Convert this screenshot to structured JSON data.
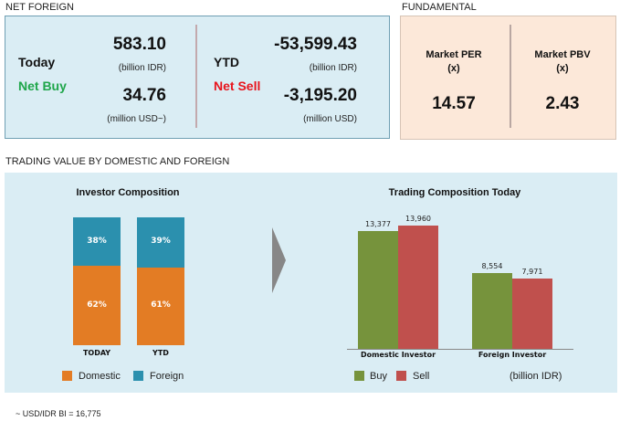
{
  "net_foreign": {
    "section_title": "NET FOREIGN",
    "today": {
      "label": "Today",
      "status": "Net Buy",
      "idr_value": "583.10",
      "idr_unit": "(billion IDR)",
      "usd_value": "34.76",
      "usd_unit": "(million USD~)"
    },
    "ytd": {
      "label": "YTD",
      "status": "Net Sell",
      "idr_value": "-53,599.43",
      "idr_unit": "(billion IDR)",
      "usd_value": "-3,195.20",
      "usd_unit": "(million USD)"
    }
  },
  "fundamental": {
    "section_title": "FUNDAMENTAL",
    "per": {
      "label": "Market PER",
      "unit": "(x)",
      "value": "14.57"
    },
    "pbv": {
      "label": "Market PBV",
      "unit": "(x)",
      "value": "2.43"
    }
  },
  "trading_value": {
    "section_title": "TRADING VALUE BY DOMESTIC AND FOREIGN",
    "footnote": "~ USD/IDR BI = 16,775"
  },
  "colors": {
    "domestic": "#e37c24",
    "foreign": "#2b90ae",
    "buy": "#76933c",
    "sell": "#c0504d"
  },
  "chart_data": [
    {
      "type": "bar",
      "stacked": true,
      "title": "Investor Composition",
      "categories": [
        "TODAY",
        "YTD"
      ],
      "series": [
        {
          "name": "Domestic",
          "values": [
            62,
            61
          ],
          "labels": [
            "62%",
            "61%"
          ]
        },
        {
          "name": "Foreign",
          "values": [
            38,
            39
          ],
          "labels": [
            "38%",
            "39%"
          ]
        }
      ],
      "ylim": [
        0,
        100
      ],
      "legend": "bottom"
    },
    {
      "type": "bar",
      "title": "Trading Composition Today",
      "categories": [
        "Domestic Investor",
        "Foreign Investor"
      ],
      "series": [
        {
          "name": "Buy",
          "values": [
            13377,
            8554
          ],
          "labels": [
            "13,377",
            "8,554"
          ]
        },
        {
          "name": "Sell",
          "values": [
            13960,
            7971
          ],
          "labels": [
            "13,960",
            "7,971"
          ]
        }
      ],
      "unit_label": "(billion IDR)",
      "ylim": [
        0,
        15500
      ],
      "legend": "bottom"
    }
  ]
}
